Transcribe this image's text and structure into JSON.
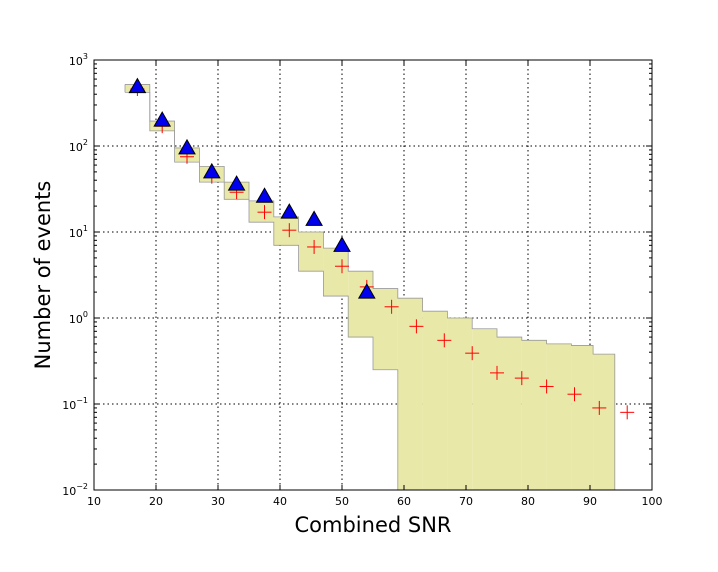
{
  "chart_data": {
    "type": "scatter",
    "title": "",
    "xlabel": "Combined SNR",
    "ylabel": "Number of events",
    "xlim": [
      10,
      100
    ],
    "ylim": [
      0.01,
      1000
    ],
    "yscale": "log",
    "grid": true,
    "legend": "none",
    "x_ticks": [
      10,
      20,
      30,
      40,
      50,
      60,
      70,
      80,
      90,
      100
    ],
    "y_ticks": [
      {
        "value": 0.01,
        "base": "10",
        "exp": "−2"
      },
      {
        "value": 0.1,
        "base": "10",
        "exp": "−1"
      },
      {
        "value": 1,
        "base": "10",
        "exp": "0"
      },
      {
        "value": 10,
        "base": "10",
        "exp": "1"
      },
      {
        "value": 100,
        "base": "10",
        "exp": "2"
      },
      {
        "value": 1000,
        "base": "10",
        "exp": "3"
      }
    ],
    "band": {
      "color": "#e8e8a8",
      "edge_color": "#9a9a9a",
      "bins": [
        {
          "x0": 15,
          "x1": 19,
          "lo": 420,
          "hi": 520
        },
        {
          "x0": 19,
          "x1": 23,
          "lo": 150,
          "hi": 195
        },
        {
          "x0": 23,
          "x1": 27,
          "lo": 65,
          "hi": 95
        },
        {
          "x0": 27,
          "x1": 31,
          "lo": 38,
          "hi": 58
        },
        {
          "x0": 31,
          "x1": 35,
          "lo": 24,
          "hi": 38
        },
        {
          "x0": 35,
          "x1": 39,
          "lo": 13,
          "hi": 23
        },
        {
          "x0": 39,
          "x1": 43,
          "lo": 7,
          "hi": 15
        },
        {
          "x0": 43,
          "x1": 47,
          "lo": 3.5,
          "hi": 10
        },
        {
          "x0": 47,
          "x1": 51,
          "lo": 1.8,
          "hi": 6.5
        },
        {
          "x0": 51,
          "x1": 55,
          "lo": 0.6,
          "hi": 3.5
        },
        {
          "x0": 55,
          "x1": 59,
          "lo": 0.25,
          "hi": 2.2
        },
        {
          "x0": 59,
          "x1": 63,
          "lo": 0.01,
          "hi": 1.7
        },
        {
          "x0": 63,
          "x1": 67,
          "lo": 0.01,
          "hi": 1.2
        },
        {
          "x0": 67,
          "x1": 71,
          "lo": 0.01,
          "hi": 1.0
        },
        {
          "x0": 71,
          "x1": 75,
          "lo": 0.01,
          "hi": 0.75
        },
        {
          "x0": 75,
          "x1": 79,
          "lo": 0.01,
          "hi": 0.6
        },
        {
          "x0": 79,
          "x1": 83,
          "lo": 0.01,
          "hi": 0.55
        },
        {
          "x0": 83,
          "x1": 87,
          "lo": 0.01,
          "hi": 0.5
        },
        {
          "x0": 87,
          "x1": 90.5,
          "lo": 0.01,
          "hi": 0.48
        },
        {
          "x0": 90.5,
          "x1": 94,
          "lo": 0.01,
          "hi": 0.38
        }
      ]
    },
    "series": [
      {
        "marker": "plus",
        "color": "#ff0000",
        "x": [
          17,
          21,
          25,
          29,
          33,
          37.5,
          41.5,
          45.5,
          50,
          54,
          58,
          62,
          66.5,
          71,
          75,
          79,
          83,
          87.5,
          91.5,
          96
        ],
        "y": [
          460,
          170,
          75,
          44,
          29,
          17,
          10.5,
          6.7,
          4.0,
          2.3,
          1.35,
          0.8,
          0.55,
          0.39,
          0.23,
          0.2,
          0.16,
          0.13,
          0.09,
          0.08
        ]
      },
      {
        "marker": "triangle",
        "color": "#0000ee",
        "x": [
          17,
          21,
          25,
          29,
          33,
          37.5,
          41.5,
          45.5,
          50,
          54
        ],
        "y": [
          490,
          200,
          95,
          50,
          36,
          26,
          17,
          14,
          7,
          2.0
        ]
      }
    ]
  }
}
